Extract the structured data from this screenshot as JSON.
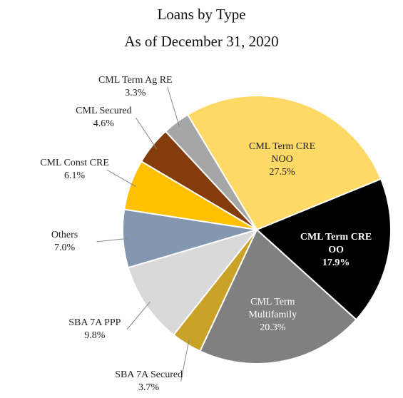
{
  "chart_data": {
    "type": "pie",
    "title": "Loans by Type",
    "subtitle": "As of December 31, 2020",
    "categories": [
      "CML Term CRE NOO",
      "CML Term CRE OO",
      "CML Term Multifamily",
      "SBA 7A Secured",
      "SBA 7A PPP",
      "Others",
      "CML Const CRE",
      "CML Secured",
      "CML Term Ag RE"
    ],
    "values": [
      27.5,
      17.9,
      20.3,
      3.7,
      9.8,
      7.0,
      6.1,
      4.6,
      3.3
    ],
    "value_labels": [
      "27.5%",
      "17.9%",
      "20.3%",
      "3.7%",
      "9.8%",
      "7.0%",
      "6.1%",
      "4.6%",
      "3.3%"
    ],
    "colors": [
      "#FFD966",
      "#000000",
      "#808080",
      "#C9A227",
      "#D9D9D9",
      "#8497B0",
      "#FFC000",
      "#843C0C",
      "#A6A6A6"
    ]
  }
}
